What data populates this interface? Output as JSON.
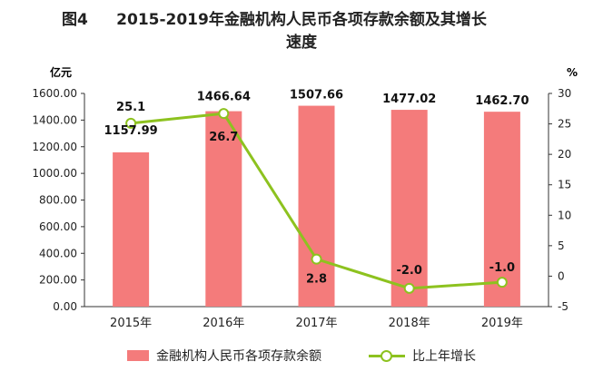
{
  "title": {
    "label": "图4",
    "line1": "2015-2019年金融机构人民币各项存款余额及其增长",
    "line2": "速度"
  },
  "colors": {
    "bar": "#f47b7b",
    "line": "#8dc21f",
    "grid": "#ffffff",
    "plot_bg": "#ffffff"
  },
  "chart_data": {
    "type": "bar",
    "title": "2015-2019年金融机构人民币各项存款余额及其增长速度",
    "categories": [
      "2015年",
      "2016年",
      "2017年",
      "2018年",
      "2019年"
    ],
    "left_axis": {
      "unit": "亿元",
      "ylim": [
        0,
        1600
      ],
      "ticks": [
        "0.00",
        "200.00",
        "400.00",
        "600.00",
        "800.00",
        "1000.00",
        "1200.00",
        "1400.00",
        "1600.00"
      ]
    },
    "right_axis": {
      "unit": "%",
      "ylim": [
        -5,
        30
      ],
      "ticks": [
        "-5",
        "0",
        "5",
        "10",
        "15",
        "20",
        "25",
        "30"
      ]
    },
    "series": [
      {
        "name": "金融机构人民币各项存款余额",
        "type": "bar",
        "axis": "left",
        "values": [
          1157.99,
          1466.64,
          1507.66,
          1477.02,
          1462.7
        ],
        "labels": [
          "1157.99",
          "1466.64",
          "1507.66",
          "1477.02",
          "1462.70"
        ]
      },
      {
        "name": "比上年增长",
        "type": "line",
        "axis": "right",
        "values": [
          25.1,
          26.7,
          2.8,
          -2.0,
          -1.0
        ],
        "labels": [
          "25.1",
          "26.7",
          "2.8",
          "-2.0",
          "-1.0"
        ]
      }
    ],
    "legend": "bottom"
  }
}
